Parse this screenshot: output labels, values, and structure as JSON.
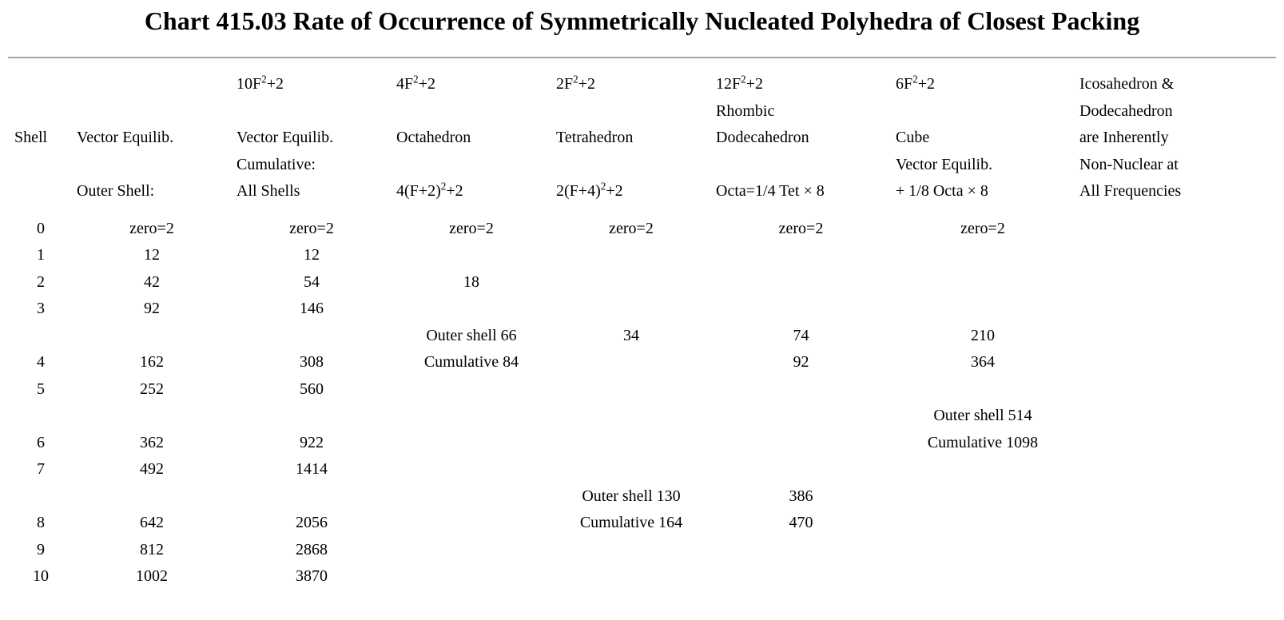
{
  "title": "Chart 415.03 Rate of Occurrence of Symmetrically Nucleated Polyhedra of Closest Packing",
  "chart_data": {
    "type": "table",
    "title": "Chart 415.03 Rate of Occurrence of Symmetrically Nucleated Polyhedra of Closest Packing",
    "grid": "off",
    "columns_semantic": [
      "Shell",
      "Vector Equilib. Outer Shell",
      "Vector Equilib. Cumulative All Shells",
      "Octahedron",
      "Tetrahedron",
      "Rhombic Dodecahedron",
      "Cube",
      "Icosahedron & Dodecahedron note"
    ],
    "header_lines": [
      [
        "",
        "",
        "10F²+2",
        "4F²+2",
        "2F²+2",
        "12F²+2",
        "6F²+2",
        "Icosahedron &"
      ],
      [
        "",
        "",
        "",
        "",
        "",
        "Rhombic",
        "",
        "Dodecahedron"
      ],
      [
        "Shell",
        "Vector Equilib.",
        "Vector Equilib.",
        "Octahedron",
        "Tetrahedron",
        "Dodecahedron",
        "Cube",
        "are Inherently"
      ],
      [
        "",
        "",
        "Cumulative:",
        "",
        "",
        "",
        "Vector Equilib.",
        "Non-Nuclear at"
      ],
      [
        "",
        "Outer Shell:",
        "All Shells",
        "4(F+2)²+2",
        "2(F+4)²+2",
        "Octa=1/4 Tet × 8",
        "+ 1/8 Octa × 8",
        "All Frequencies"
      ]
    ],
    "rows": [
      [
        "0",
        "zero=2",
        "zero=2",
        "zero=2",
        "zero=2",
        "zero=2",
        "zero=2",
        ""
      ],
      [
        "1",
        "12",
        "12",
        "",
        "",
        "",
        "",
        ""
      ],
      [
        "2",
        "42",
        "54",
        "18",
        "",
        "",
        "",
        ""
      ],
      [
        "3",
        "92",
        "146",
        "",
        "",
        "",
        "",
        ""
      ],
      [
        "",
        "",
        "",
        "Outer shell 66",
        "34",
        "74",
        "210",
        ""
      ],
      [
        "4",
        "162",
        "308",
        "Cumulative 84",
        "",
        "92",
        "364",
        ""
      ],
      [
        "5",
        "252",
        "560",
        "",
        "",
        "",
        "",
        ""
      ],
      [
        "",
        "",
        "",
        "",
        "",
        "",
        "Outer shell 514",
        ""
      ],
      [
        "6",
        "362",
        "922",
        "",
        "",
        "",
        "Cumulative 1098",
        ""
      ],
      [
        "7",
        "492",
        "1414",
        "",
        "",
        "",
        "",
        ""
      ],
      [
        "",
        "",
        "",
        "",
        "Outer shell 130",
        "386",
        "",
        ""
      ],
      [
        "8",
        "642",
        "2056",
        "",
        "Cumulative 164",
        "470",
        "",
        ""
      ],
      [
        "9",
        "812",
        "2868",
        "",
        "",
        "",
        "",
        ""
      ],
      [
        "10",
        "1002",
        "3870",
        "",
        "",
        "",
        "",
        ""
      ]
    ]
  },
  "colors": {
    "text": "#000000",
    "background": "#ffffff",
    "divider": "#a6a6a6"
  }
}
